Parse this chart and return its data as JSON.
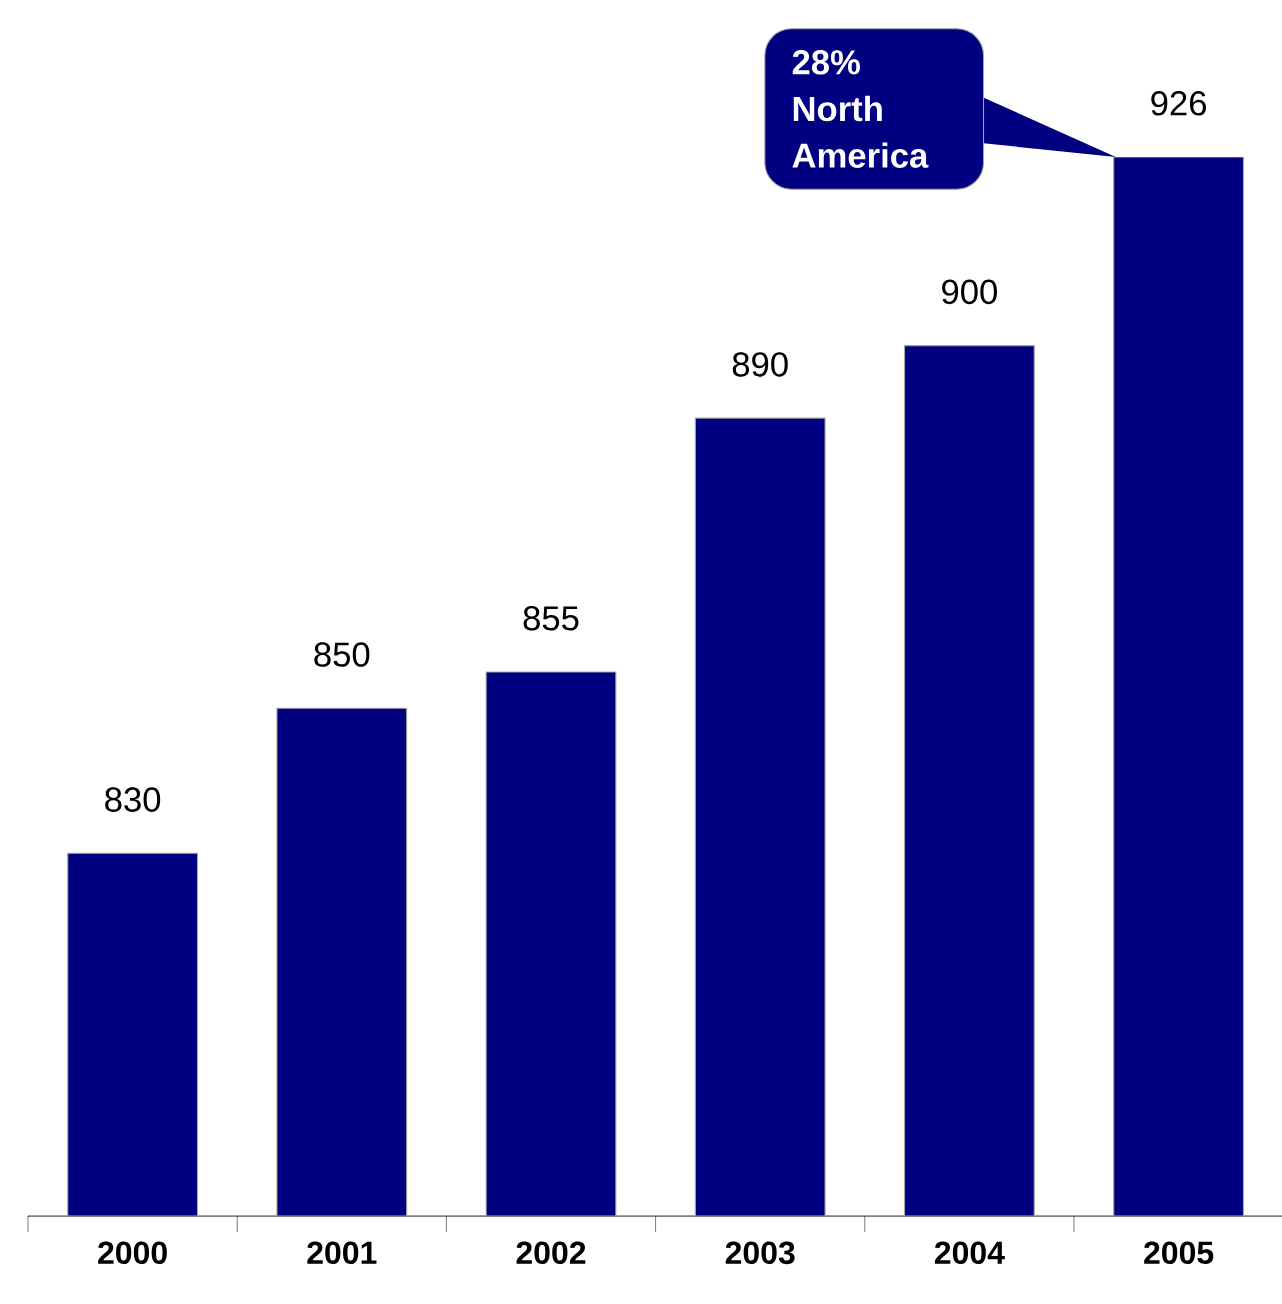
{
  "chart_data": {
    "type": "bar",
    "categories": [
      "2000",
      "2001",
      "2002",
      "2003",
      "2004",
      "2005"
    ],
    "values": [
      830,
      850,
      855,
      890,
      900,
      926
    ],
    "color": "#000080",
    "ylim": [
      780,
      926
    ],
    "data_labels": true,
    "tick_labels": "x",
    "annotations": [
      "28% North America"
    ]
  }
}
